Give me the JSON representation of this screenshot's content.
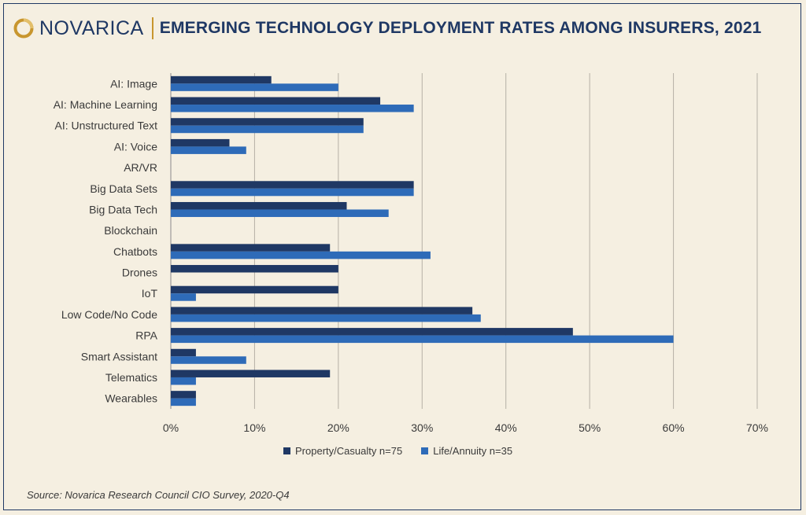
{
  "header": {
    "logo_text": "NOVARICA",
    "title": "EMERGING TECHNOLOGY DEPLOYMENT RATES AMONG INSURERS, 2021"
  },
  "colors": {
    "background": "#f5efe1",
    "brand_navy": "#1f3864",
    "brand_gold": "#c8962e",
    "series_pc": "#1f3864",
    "series_la": "#2e6bb8"
  },
  "icons": {
    "logo": "novarica-ring-logo-icon"
  },
  "chart_data": {
    "type": "bar",
    "orientation": "horizontal",
    "categories": [
      "AI: Image",
      "AI: Machine Learning",
      "AI: Unstructured Text",
      "AI: Voice",
      "AR/VR",
      "Big Data Sets",
      "Big Data Tech",
      "Blockchain",
      "Chatbots",
      "Drones",
      "IoT",
      "Low Code/No Code",
      "RPA",
      "Smart Assistant",
      "Telematics",
      "Wearables"
    ],
    "series": [
      {
        "name": "Property/Casualty n=75",
        "values": [
          12,
          25,
          23,
          7,
          0,
          29,
          21,
          0,
          19,
          20,
          20,
          36,
          48,
          3,
          19,
          3
        ]
      },
      {
        "name": "Life/Annuity n=35",
        "values": [
          20,
          29,
          23,
          9,
          0,
          29,
          26,
          0,
          31,
          0,
          3,
          37,
          60,
          9,
          3,
          3
        ]
      }
    ],
    "xlim": [
      0,
      70
    ],
    "xticks": [
      "0%",
      "10%",
      "20%",
      "30%",
      "40%",
      "50%",
      "60%",
      "70%"
    ],
    "grid": true,
    "legend_position": "bottom"
  },
  "footer": {
    "source": "Source: Novarica Research Council CIO Survey, 2020-Q4"
  }
}
